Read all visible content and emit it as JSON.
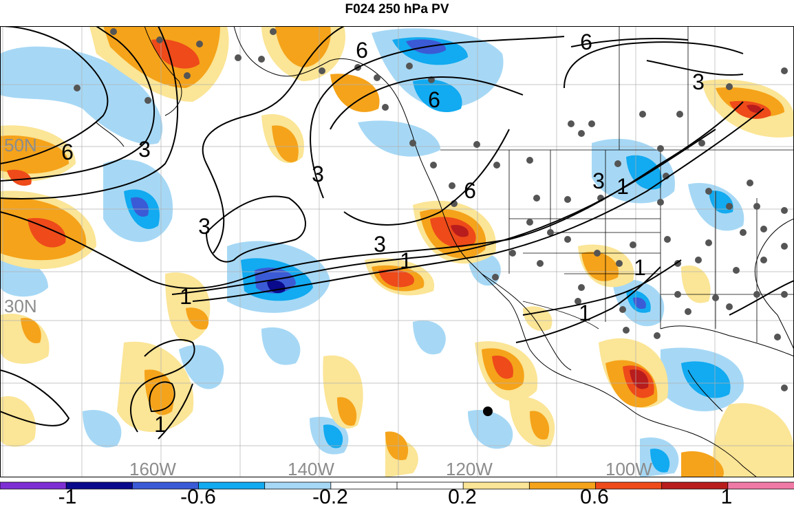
{
  "title": "F024 250 hPa PV",
  "map": {
    "lat_labels": [
      "50N",
      "30N"
    ],
    "lon_labels": [
      "160W",
      "140W",
      "120W",
      "100W"
    ],
    "contour_labels": [
      "6",
      "6",
      "6",
      "6",
      "6",
      "3",
      "3",
      "3",
      "3",
      "3",
      "3",
      "1",
      "1",
      "1",
      "1",
      "1",
      "1"
    ],
    "label_color": "#8c8c8c"
  },
  "colorbar": {
    "labels": [
      "-1",
      "-0.6",
      "-0.2",
      "0.2",
      "0.6",
      "1"
    ],
    "colors": [
      "#7e2fd4",
      "#0a0a8c",
      "#3b5bd6",
      "#12aaf0",
      "#a6d8f5",
      "#ffffff",
      "#ffffff",
      "#fbe596",
      "#f5a31a",
      "#ee4a1a",
      "#b81c1c",
      "#f07aa6"
    ]
  },
  "colors": {
    "neg_weak": "#a6d8f5",
    "neg_mid": "#12aaf0",
    "neg_strong": "#3b5bd6",
    "neg_max": "#0a0a8c",
    "pos_weak": "#fbe596",
    "pos_mid": "#f5a31a",
    "pos_strong": "#ee4a1a",
    "pos_max": "#b81c1c"
  }
}
